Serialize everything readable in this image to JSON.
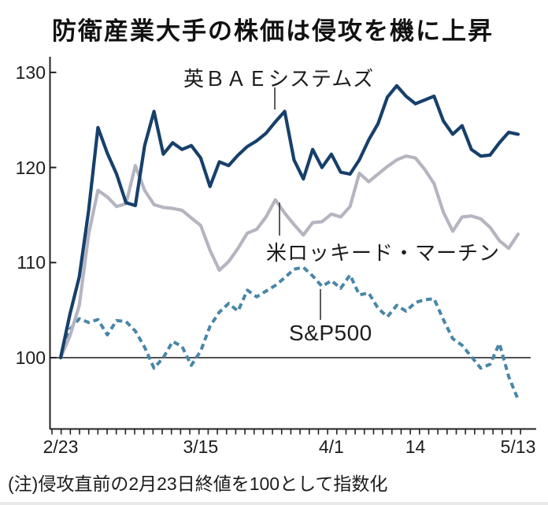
{
  "chart_data": {
    "type": "line",
    "title": "防衛産業大手の株価は侵攻を機に上昇",
    "note": "(注)侵攻直前の2月23日終値を100として指数化",
    "x_axis": {
      "labels": [
        {
          "text": "2/23",
          "index": 0
        },
        {
          "text": "3/15",
          "index": 15
        },
        {
          "text": "4/1",
          "index": 29
        },
        {
          "text": "14",
          "index": 38
        },
        {
          "text": "5/13",
          "index": 49
        }
      ],
      "minor_tick_count": 52
    },
    "y_axis": {
      "ticks": [
        130,
        120,
        110,
        100
      ],
      "ylim": [
        92.5,
        131.5
      ],
      "baseline": 100
    },
    "grid": "baseline-only",
    "legend_position": "inline-annotations",
    "series": [
      {
        "name": "S&P500",
        "label": "S&P500",
        "color": "#4886a8",
        "style": "dashed",
        "values": [
          100,
          103.0,
          104.1,
          103.7,
          104.0,
          102.4,
          103.9,
          103.8,
          102.8,
          101.1,
          98.9,
          100.0,
          101.7,
          101.2,
          99.2,
          100.7,
          103.3,
          104.8,
          105.7,
          104.9,
          107.1,
          106.4,
          107.0,
          107.6,
          108.4,
          109.3,
          109.5,
          108.6,
          107.5,
          108.1,
          107.3,
          108.7,
          106.6,
          106.8,
          105.2,
          104.3,
          105.5,
          104.9,
          105.8,
          106.1,
          106.2,
          104.0,
          102.0,
          101.3,
          100.1,
          98.9,
          99.3,
          101.5,
          98.0,
          95.6
        ]
      },
      {
        "name": "米ロッキード・マーチン",
        "label": "米ロッキード・マーチン",
        "color": "#b5b5c1",
        "style": "solid",
        "values": [
          100,
          102.3,
          105.5,
          113.0,
          117.6,
          116.9,
          115.9,
          116.2,
          120.2,
          117.6,
          116.1,
          115.8,
          115.7,
          115.5,
          114.7,
          113.9,
          111.3,
          109.2,
          110.1,
          111.5,
          113.1,
          113.5,
          114.8,
          116.6,
          115.2,
          114.0,
          112.9,
          114.2,
          114.3,
          115.1,
          114.8,
          115.9,
          119.4,
          118.5,
          119.3,
          120.1,
          120.8,
          121.2,
          121.0,
          119.8,
          118.3,
          115.3,
          113.3,
          114.8,
          114.9,
          114.6,
          113.7,
          112.3,
          111.5,
          113.0
        ]
      },
      {
        "name": "英ＢＡＥシステムズ",
        "label": "英ＢＡＥシステムズ",
        "color": "#17406b",
        "style": "solid",
        "values": [
          100,
          104.6,
          108.5,
          115.5,
          124.2,
          121.5,
          119.3,
          116.3,
          116.0,
          122.3,
          125.9,
          121.4,
          122.6,
          121.9,
          122.3,
          121.0,
          118.0,
          120.6,
          120.2,
          121.3,
          122.2,
          122.8,
          123.6,
          124.8,
          125.9,
          120.8,
          118.8,
          121.9,
          120.0,
          121.4,
          119.5,
          119.3,
          120.8,
          122.9,
          124.6,
          127.4,
          128.6,
          127.5,
          126.7,
          127.1,
          127.5,
          124.9,
          123.5,
          124.4,
          121.9,
          121.2,
          121.3,
          122.6,
          123.7,
          123.5
        ]
      }
    ],
    "colors": {
      "axis": "#222222",
      "baseline_rule": "#3a3a3a",
      "text": "#1c1c1c",
      "bae": "#17406b",
      "lockheed": "#b5b5c1",
      "sp500": "#4886a8"
    }
  }
}
